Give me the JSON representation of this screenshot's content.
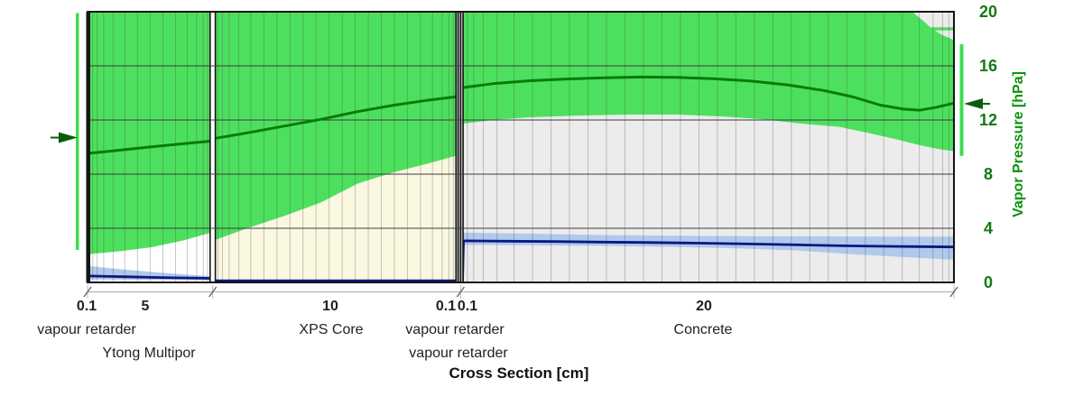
{
  "chart_data": {
    "type": "area",
    "title": "",
    "xlabel": "Cross Section [cm]",
    "ylabel": "Vapor Pressure [hPa]",
    "x_unit": "cm",
    "y_unit": "hPa",
    "ylim": [
      0,
      20
    ],
    "xlim_cm": [
      0,
      35.3
    ],
    "grid": "horizontal lines at 4, 8, 12, 16 hPa; vertical numeric mesh per layer",
    "legend_position": "none",
    "y_ticks": [
      "20",
      "16",
      "12",
      "8",
      "4",
      "0"
    ],
    "y_tick_values": [
      20,
      16,
      12,
      8,
      4,
      0
    ],
    "layers": [
      {
        "name": "vapour retarder",
        "label": "0.1",
        "thickness_cm": 0.1,
        "bg": "#141414"
      },
      {
        "name": "Ytong Multipor",
        "label": "5",
        "thickness_cm": 5.0,
        "bg": "#ffffff"
      },
      {
        "name": "XPS Core",
        "label": "10",
        "thickness_cm": 10.0,
        "bg": "#faf8e1"
      },
      {
        "name": "vapour retarder",
        "label": "0.1",
        "thickness_cm": 0.1,
        "bg": "#d8d8d8"
      },
      {
        "name": "vapour retarder",
        "label": "0.1",
        "thickness_cm": 0.1,
        "bg": "#d8d8d8"
      },
      {
        "name": "Concrete",
        "label": "20",
        "thickness_cm": 20.0,
        "bg": "#ececec"
      }
    ],
    "series": [
      {
        "name": "saturation_pressure_range",
        "type": "band",
        "color": "#4de05e",
        "upper": [
          [
            0.1,
            20
          ],
          [
            33.6,
            20
          ],
          [
            34.0,
            19.4
          ],
          [
            34.4,
            18.75
          ],
          [
            34.8,
            18.3
          ],
          [
            35.3,
            17.9
          ]
        ],
        "lower": [
          [
            0.1,
            2.1
          ],
          [
            1.3,
            2.3
          ],
          [
            2.6,
            2.6
          ],
          [
            3.9,
            3.1
          ],
          [
            5.1,
            3.72
          ],
          [
            5.1,
            3.07
          ],
          [
            6.5,
            4.0
          ],
          [
            8,
            4.9
          ],
          [
            9.5,
            5.9
          ],
          [
            11,
            7.3
          ],
          [
            12.5,
            8.15
          ],
          [
            13.8,
            8.75
          ],
          [
            15.1,
            9.4
          ],
          [
            15.32,
            11.73
          ],
          [
            16.5,
            12.0
          ],
          [
            18,
            12.2
          ],
          [
            20,
            12.33
          ],
          [
            22,
            12.4
          ],
          [
            24,
            12.4
          ],
          [
            26,
            12.25
          ],
          [
            27.5,
            12.05
          ],
          [
            29,
            11.75
          ],
          [
            30.6,
            11.5
          ],
          [
            31.8,
            11.05
          ],
          [
            33,
            10.55
          ],
          [
            34,
            10.1
          ],
          [
            34.8,
            9.82
          ],
          [
            35.3,
            9.7
          ]
        ]
      },
      {
        "name": "saturation_pressure",
        "type": "line",
        "color": "#067d06",
        "points": [
          [
            0.1,
            9.55
          ],
          [
            1.2,
            9.75
          ],
          [
            2.6,
            10.02
          ],
          [
            3.9,
            10.25
          ],
          [
            5.1,
            10.45
          ],
          [
            5.12,
            10.62
          ],
          [
            6.5,
            11.05
          ],
          [
            8,
            11.55
          ],
          [
            9.5,
            12.05
          ],
          [
            11,
            12.62
          ],
          [
            12.5,
            13.1
          ],
          [
            13.8,
            13.45
          ],
          [
            15.1,
            13.73
          ],
          [
            15.32,
            14.4
          ],
          [
            16.5,
            14.68
          ],
          [
            18,
            14.9
          ],
          [
            19.5,
            15.03
          ],
          [
            21,
            15.12
          ],
          [
            22.5,
            15.17
          ],
          [
            24,
            15.15
          ],
          [
            25.5,
            15.05
          ],
          [
            27,
            14.88
          ],
          [
            28.5,
            14.6
          ],
          [
            30,
            14.18
          ],
          [
            31.2,
            13.7
          ],
          [
            32.3,
            13.1
          ],
          [
            33.2,
            12.82
          ],
          [
            33.9,
            12.72
          ],
          [
            34.6,
            12.95
          ],
          [
            35.3,
            13.25
          ]
        ]
      },
      {
        "name": "vapor_pressure_range",
        "type": "band",
        "color": "#b0c9ec",
        "segments": [
          {
            "upper": [
              [
                0.1,
                1.2
              ],
              [
                1.5,
                0.95
              ],
              [
                3,
                0.72
              ],
              [
                4.2,
                0.56
              ],
              [
                5.1,
                0.46
              ]
            ],
            "lower": [
              [
                0.1,
                0.22
              ],
              [
                5.1,
                0.16
              ]
            ]
          },
          {
            "upper": [
              [
                15.32,
                3.67
              ],
              [
                18,
                3.6
              ],
              [
                21,
                3.5
              ],
              [
                24,
                3.45
              ],
              [
                27,
                3.42
              ],
              [
                30,
                3.4
              ],
              [
                33,
                3.38
              ],
              [
                35.3,
                3.37
              ]
            ],
            "lower": [
              [
                15.32,
                2.77
              ],
              [
                18,
                2.74
              ],
              [
                21,
                2.7
              ],
              [
                24,
                2.62
              ],
              [
                26.5,
                2.52
              ],
              [
                29,
                2.35
              ],
              [
                31,
                2.1
              ],
              [
                32.5,
                1.95
              ],
              [
                33.8,
                1.82
              ],
              [
                35.3,
                1.67
              ]
            ]
          }
        ]
      },
      {
        "name": "vapor_pressure",
        "type": "line",
        "color": "#0a1880",
        "points": [
          [
            0.1,
            0.47
          ],
          [
            1.5,
            0.42
          ],
          [
            3,
            0.36
          ],
          [
            5.1,
            0.3
          ],
          [
            5.12,
            0.13
          ],
          [
            15.28,
            0.12
          ],
          [
            15.32,
            3.07
          ],
          [
            17,
            3.05
          ],
          [
            19,
            3.02
          ],
          [
            21,
            2.98
          ],
          [
            23,
            2.95
          ],
          [
            25,
            2.9
          ],
          [
            27,
            2.84
          ],
          [
            29,
            2.77
          ],
          [
            31,
            2.7
          ],
          [
            33,
            2.66
          ],
          [
            35.3,
            2.62
          ]
        ]
      }
    ],
    "outdoor_climate_bar": {
      "side": "left",
      "v_min": 2.4,
      "v_max": 19.9,
      "marker_value": 10.7,
      "color": "#3fdb4f"
    },
    "indoor_climate_bar": {
      "side": "right",
      "v_min": 9.35,
      "v_max": 17.6,
      "marker_value": 13.2,
      "color": "#3fdb4f"
    },
    "annotations": {
      "top_right_stripe": {
        "x0_cm": 34.3,
        "x1_cm": 35.3,
        "value": 18.75,
        "color": "#4de05e"
      }
    },
    "colors": {
      "band_green": "#4de05e",
      "curve_green": "#067d06",
      "curve_navy": "#0a1880",
      "band_blue": "#b0c9ec",
      "bar_green": "#3fdb4f",
      "arrow_green": "#0a5c0a",
      "tick_green": "#147914",
      "title_green": "#0c930c",
      "gridline": "#3d3d3d",
      "mesh": "rgba(70,70,70,0.30)",
      "border": "#141414",
      "dimension_line": "#a8a8a8"
    }
  }
}
